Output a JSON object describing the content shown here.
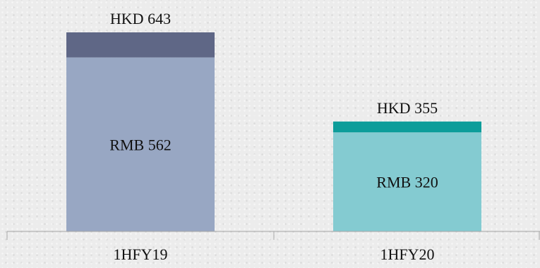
{
  "chart_data": {
    "type": "bar",
    "stacked": true,
    "categories": [
      "1HFY19",
      "1HFY20"
    ],
    "series": [
      {
        "values": [
          562,
          320
        ],
        "labels": [
          "RMB 562",
          "RMB 320"
        ],
        "colors": [
          "#98a7c3",
          "#84cbd1"
        ]
      },
      {
        "values": [
          81,
          35
        ],
        "colors": [
          "#5f6786",
          "#0d9d9a"
        ]
      }
    ],
    "totals": [
      643,
      355
    ],
    "total_labels": [
      "HKD 643",
      "HKD 355"
    ],
    "title": "",
    "xlabel": "",
    "ylabel": "",
    "ylim": [
      0,
      643
    ],
    "grid": false,
    "axis_color": "#a6a6a6"
  }
}
